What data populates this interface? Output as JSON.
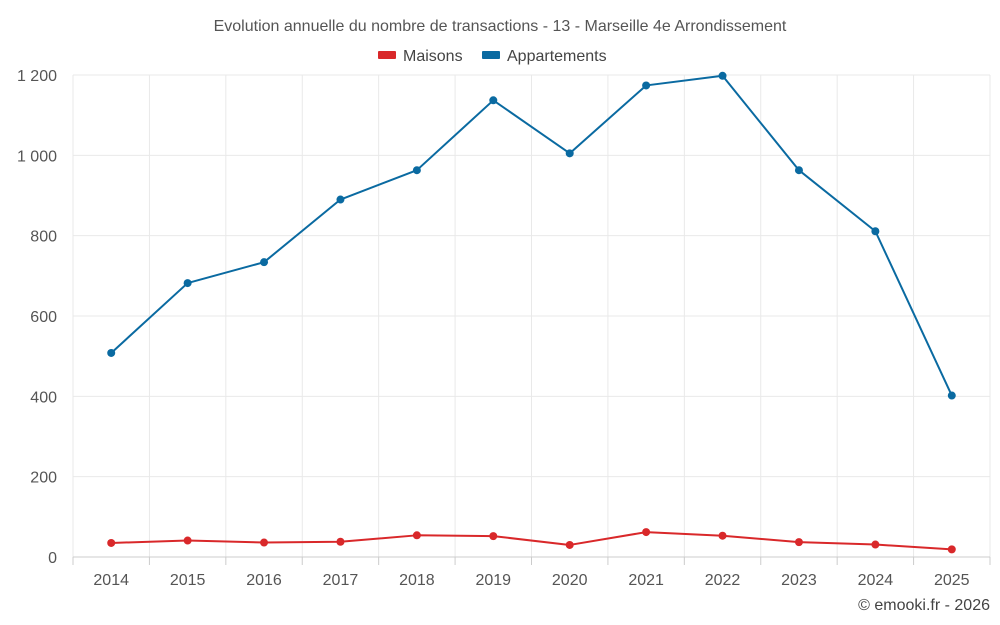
{
  "chart_data": {
    "type": "line",
    "title": "Evolution annuelle du nombre de transactions - 13 - Marseille 4e Arrondissement",
    "categories": [
      "2014",
      "2015",
      "2016",
      "2017",
      "2018",
      "2019",
      "2020",
      "2021",
      "2022",
      "2023",
      "2024",
      "2025"
    ],
    "series": [
      {
        "name": "Maisons",
        "color": "#d9282a",
        "values": [
          35,
          41,
          36,
          38,
          54,
          52,
          30,
          62,
          53,
          37,
          31,
          19
        ]
      },
      {
        "name": "Appartements",
        "color": "#0a6aa1",
        "values": [
          508,
          682,
          734,
          890,
          963,
          1137,
          1005,
          1174,
          1198,
          963,
          811,
          402
        ]
      }
    ],
    "y_ticks": [
      0,
      200,
      400,
      600,
      800,
      1000,
      1200
    ],
    "y_tick_labels": [
      "0",
      "200",
      "400",
      "600",
      "800",
      "1 000",
      "1 200"
    ],
    "ylim": [
      0,
      1200
    ],
    "xlabel": "",
    "ylabel": "",
    "grid": true,
    "legend_position": "top-center",
    "credit": "© emooki.fr - 2026"
  }
}
